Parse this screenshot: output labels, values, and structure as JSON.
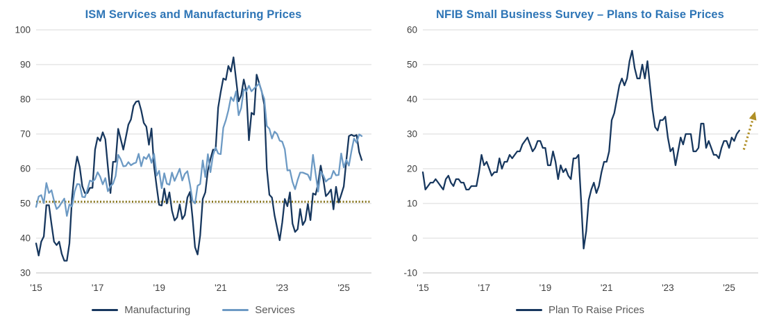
{
  "chart_data": [
    {
      "type": "line",
      "title": "ISM Services and Manufacturing Prices",
      "title_color": "#2E75B6",
      "xlabel": "",
      "ylabel": "",
      "xlim": [
        2015,
        2025.9
      ],
      "ylim": [
        30,
        100
      ],
      "y_ticks": [
        30,
        40,
        50,
        60,
        70,
        80,
        90,
        100
      ],
      "x_ticks": [
        {
          "v": 2015,
          "label": "'15"
        },
        {
          "v": 2017,
          "label": "'17"
        },
        {
          "v": 2019,
          "label": "'19"
        },
        {
          "v": 2021,
          "label": "'21"
        },
        {
          "v": 2023,
          "label": "'23"
        },
        {
          "v": 2025,
          "label": "'25"
        }
      ],
      "x_start": 2015,
      "points_per_year": 12,
      "grid_color": "#D9D9D9",
      "axis_color": "#BFBFBF",
      "tick_color": "#404040",
      "legend_position": "bottom",
      "reference_line": {
        "value": 50.5,
        "color": "#8C7B26",
        "style": "dotted"
      },
      "series": [
        {
          "name": "Manufacturing",
          "color": "#17375E",
          "values": [
            38.5,
            35,
            39,
            40.5,
            49.5,
            49.5,
            44,
            39,
            38,
            39,
            35.5,
            33.5,
            33.5,
            38.5,
            51.5,
            59,
            63.5,
            60.5,
            55,
            53,
            53,
            54.5,
            54.5,
            65.5,
            69,
            68,
            70.5,
            68.5,
            60.5,
            53,
            62,
            62,
            71.5,
            68.5,
            65.5,
            69,
            72.7,
            74.2,
            78.1,
            79.3,
            79.5,
            76.8,
            73.2,
            72.1,
            66.9,
            71.6,
            60.7,
            54.9,
            49.6,
            49.4,
            54.3,
            50,
            53.2,
            47.9,
            45.1,
            46,
            49.7,
            45.5,
            46.7,
            51.7,
            53.3,
            45.9,
            37.4,
            35.3,
            40.8,
            51.3,
            53.2,
            59.5,
            62.8,
            65.5,
            65.4,
            77.6,
            82.1,
            86,
            85.6,
            89.6,
            88,
            92.1,
            85.7,
            79.4,
            81.2,
            85.7,
            82.4,
            68.2,
            76.1,
            75.6,
            87.1,
            84.6,
            82.2,
            78.5,
            60,
            52.5,
            51.7,
            46.6,
            43,
            39.4,
            44.5,
            51.3,
            49.2,
            53.2,
            44.2,
            41.8,
            42.6,
            48.4,
            43.8,
            45.1,
            49.9,
            45.2,
            52.9,
            52.5,
            55.8,
            60.9,
            57,
            52.1,
            52.9,
            54,
            48.3,
            54.8,
            50.3,
            52.5,
            54.9,
            62.4,
            69.4,
            69.8,
            69.4,
            69.7,
            64.8,
            62.5
          ]
        },
        {
          "name": "Services",
          "color": "#6D9AC4",
          "values": [
            49,
            52,
            52.4,
            50.1,
            55.9,
            53,
            53.8,
            50.8,
            48.4,
            49.1,
            50.3,
            51.4,
            46.4,
            49.7,
            49.1,
            53.4,
            55.6,
            55.5,
            51.9,
            51.8,
            54,
            56.6,
            56.3,
            57,
            59,
            57.7,
            55.5,
            57.3,
            53.5,
            55,
            55.7,
            57.9,
            64,
            62.7,
            60.7,
            60.8,
            61.9,
            61,
            61.5,
            61.8,
            64.3,
            60.7,
            63.4,
            62.8,
            64.2,
            61.7,
            64.3,
            58,
            59.4,
            54.4,
            58.7,
            55.7,
            55.4,
            58.9,
            56.5,
            58.2,
            60,
            56.6,
            58.5,
            59.3,
            55.5,
            50.8,
            50,
            55.1,
            55.6,
            62.4,
            57.6,
            64.2,
            59,
            63.9,
            66.1,
            64.4,
            64.2,
            71.8,
            74,
            76.8,
            80.6,
            79.5,
            82.3,
            75.4,
            77.5,
            82.9,
            82.3,
            83.9,
            82.3,
            83.1,
            83.8,
            84.6,
            82.1,
            80.1,
            72.3,
            71.5,
            68.7,
            70.7,
            70,
            68.1,
            67.8,
            65.6,
            59.5,
            59.6,
            56.2,
            54.1,
            56.8,
            58.9,
            58.9,
            58.6,
            58.3,
            56.7,
            64,
            58.6,
            53.4,
            59.2,
            58.1,
            56.3,
            57,
            57.3,
            59.4,
            58.1,
            58.2,
            64.4,
            60.4,
            62.6,
            60.9,
            65.1,
            68.7,
            67.5,
            69.9,
            69.4
          ]
        }
      ]
    },
    {
      "type": "line",
      "title": "NFIB Small Business Survey – Plans to Raise Prices",
      "title_color": "#2E75B6",
      "xlabel": "",
      "ylabel": "",
      "xlim": [
        2015,
        2025.95
      ],
      "ylim": [
        -10,
        60
      ],
      "y_ticks": [
        -10,
        0,
        10,
        20,
        30,
        40,
        50,
        60
      ],
      "x_ticks": [
        {
          "v": 2015,
          "label": "'15"
        },
        {
          "v": 2017,
          "label": "'17"
        },
        {
          "v": 2019,
          "label": "'19"
        },
        {
          "v": 2021,
          "label": "'21"
        },
        {
          "v": 2023,
          "label": "'23"
        },
        {
          "v": 2025,
          "label": "'25"
        }
      ],
      "x_start": 2015,
      "points_per_year": 12,
      "grid_color": "#D9D9D9",
      "axis_color": "#BFBFBF",
      "tick_color": "#404040",
      "legend_position": "bottom",
      "arrow": {
        "x": [
          2025.48,
          2025.85
        ],
        "y": [
          25.5,
          36.5
        ],
        "color": "#B08F26",
        "style": "dotted"
      },
      "series": [
        {
          "name": "Plan To Raise Prices",
          "color": "#17375E",
          "values": [
            19,
            14,
            15,
            16,
            16,
            17,
            16,
            15,
            14,
            17,
            18,
            16,
            15,
            17,
            17,
            16,
            16,
            14,
            14,
            15,
            15,
            15,
            19,
            24,
            21,
            22,
            20,
            18,
            19,
            19,
            23,
            20,
            22,
            22,
            24,
            23,
            24,
            25,
            25,
            27,
            28,
            29,
            27,
            25,
            26,
            28,
            28,
            26,
            26,
            21,
            21,
            25,
            22,
            17,
            21,
            19,
            20,
            18,
            17,
            23,
            23,
            24,
            11,
            -3,
            2,
            11,
            14,
            16,
            13,
            15,
            19,
            22,
            22,
            25,
            34,
            36,
            40,
            44,
            46,
            44,
            46,
            51,
            54,
            49,
            46,
            46,
            50,
            46,
            51,
            44,
            37,
            32,
            31,
            34,
            34,
            35,
            29,
            25,
            26,
            21,
            25,
            29,
            27,
            30,
            30,
            30,
            25,
            25,
            26,
            33,
            33,
            26,
            28,
            26,
            24,
            24,
            23,
            26,
            28,
            28,
            26,
            29,
            28,
            30,
            31
          ]
        }
      ]
    }
  ]
}
